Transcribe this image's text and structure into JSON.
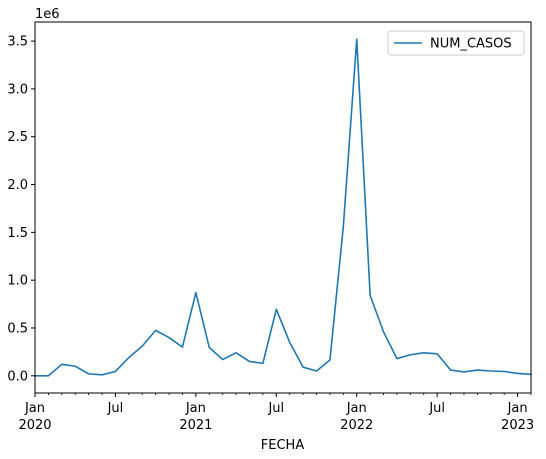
{
  "chart_data": {
    "type": "line",
    "xlabel": "FECHA",
    "ylabel": "",
    "y_offset_label": "1e6",
    "ylim": [
      -180000,
      3700000
    ],
    "xlim": [
      "2020-01",
      "2023-02"
    ],
    "grid": false,
    "legend_position": "top-right",
    "x_ticks": [
      {
        "date": "2020-01",
        "label": "Jan",
        "year": "2020"
      },
      {
        "date": "2020-07",
        "label": "Jul",
        "year": ""
      },
      {
        "date": "2021-01",
        "label": "Jan",
        "year": "2021"
      },
      {
        "date": "2021-07",
        "label": "Jul",
        "year": ""
      },
      {
        "date": "2022-01",
        "label": "Jan",
        "year": "2022"
      },
      {
        "date": "2022-07",
        "label": "Jul",
        "year": ""
      },
      {
        "date": "2023-01",
        "label": "Jan",
        "year": "2023"
      }
    ],
    "y_ticks": [
      {
        "value": 0,
        "label": "0.0"
      },
      {
        "value": 500000,
        "label": "0.5"
      },
      {
        "value": 1000000,
        "label": "1.0"
      },
      {
        "value": 1500000,
        "label": "1.5"
      },
      {
        "value": 2000000,
        "label": "2.0"
      },
      {
        "value": 2500000,
        "label": "2.5"
      },
      {
        "value": 3000000,
        "label": "3.0"
      },
      {
        "value": 3500000,
        "label": "3.5"
      }
    ],
    "series": [
      {
        "name": "NUM_CASOS",
        "color": "#1f77b4",
        "x": [
          "2020-01",
          "2020-02",
          "2020-03",
          "2020-04",
          "2020-05",
          "2020-06",
          "2020-07",
          "2020-08",
          "2020-09",
          "2020-10",
          "2020-11",
          "2020-12",
          "2021-01",
          "2021-02",
          "2021-03",
          "2021-04",
          "2021-05",
          "2021-06",
          "2021-07",
          "2021-08",
          "2021-09",
          "2021-10",
          "2021-11",
          "2021-12",
          "2022-01",
          "2022-02",
          "2022-03",
          "2022-04",
          "2022-05",
          "2022-06",
          "2022-07",
          "2022-08",
          "2022-09",
          "2022-10",
          "2022-11",
          "2022-12",
          "2023-01",
          "2023-02"
        ],
        "values": [
          0,
          0,
          120000,
          100000,
          20000,
          10000,
          45000,
          190000,
          310000,
          475000,
          400000,
          300000,
          870000,
          295000,
          170000,
          240000,
          150000,
          130000,
          695000,
          350000,
          90000,
          50000,
          165000,
          1560000,
          3520000,
          840000,
          460000,
          180000,
          220000,
          240000,
          230000,
          60000,
          40000,
          60000,
          50000,
          45000,
          25000,
          15000
        ]
      }
    ]
  }
}
